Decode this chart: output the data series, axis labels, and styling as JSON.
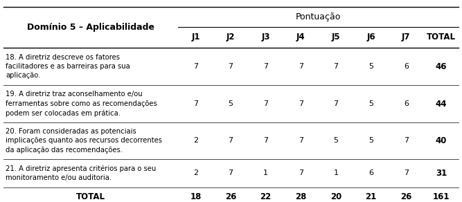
{
  "title_left": "Domínio 5 – Aplicabilidade",
  "title_right": "Pontuação",
  "col_headers": [
    "J1",
    "J2",
    "J3",
    "J4",
    "J5",
    "J6",
    "J7",
    "TOTAL"
  ],
  "rows": [
    {
      "label": "18. A diretriz descreve os fatores\nfacilitadores e as barreiras para sua\naplicação.",
      "values": [
        7,
        7,
        7,
        7,
        7,
        5,
        6,
        46
      ]
    },
    {
      "label": "19. A diretriz traz aconselhamento e/ou\nferramentas sobre como as recomendações\npodem ser colocadas em prática.",
      "values": [
        7,
        5,
        7,
        7,
        7,
        5,
        6,
        44
      ]
    },
    {
      "label": "20. Foram consideradas as potenciais\nimplicações quanto aos recursos decorrentes\nda aplicação das recomendações.",
      "values": [
        2,
        7,
        7,
        7,
        5,
        5,
        7,
        40
      ]
    },
    {
      "label": "21. A diretriz apresenta critérios para o seu\nmonitoramento e/ou auditoria.",
      "values": [
        2,
        7,
        1,
        7,
        1,
        6,
        7,
        31
      ]
    }
  ],
  "total_label": "TOTAL",
  "total_values": [
    18,
    26,
    22,
    28,
    20,
    21,
    26,
    161
  ],
  "bg_color": "#ffffff",
  "text_color": "#000000",
  "figsize": [
    6.67,
    2.92
  ],
  "dpi": 100
}
